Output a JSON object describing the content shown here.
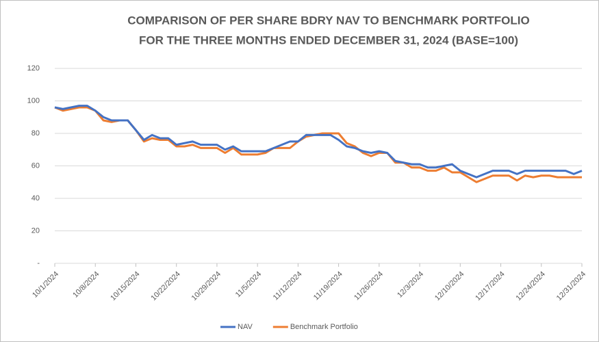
{
  "chart_data": {
    "type": "line",
    "title": [
      "COMPARISON OF PER SHARE BDRY NAV TO BENCHMARK PORTFOLIO",
      "FOR THE THREE MONTHS ENDED DECEMBER 31, 2024 (BASE=100)"
    ],
    "categories": [
      "10/1/2024",
      null,
      null,
      null,
      null,
      "10/8/2024",
      null,
      null,
      null,
      null,
      "10/15/2024",
      null,
      null,
      null,
      null,
      "10/22/2024",
      null,
      null,
      null,
      null,
      "10/29/2024",
      null,
      null,
      null,
      null,
      "11/5/2024",
      null,
      null,
      null,
      null,
      "11/12/2024",
      null,
      null,
      null,
      null,
      "11/19/2024",
      null,
      null,
      null,
      null,
      "11/26/2024",
      null,
      null,
      null,
      null,
      "12/3/2024",
      null,
      null,
      null,
      null,
      "12/10/2024",
      null,
      null,
      null,
      null,
      "12/17/2024",
      null,
      null,
      null,
      null,
      "12/24/2024",
      null,
      null,
      null,
      null,
      "12/31/2024"
    ],
    "series": [
      {
        "name": "NAV",
        "color": "#4472c4",
        "values": [
          96,
          95,
          96,
          97,
          97,
          94,
          90,
          88,
          88,
          88,
          82,
          76,
          79,
          77,
          77,
          73,
          74,
          75,
          73,
          73,
          73,
          70,
          72,
          69,
          69,
          69,
          69,
          71,
          73,
          75,
          75,
          79,
          79,
          79,
          79,
          76,
          72,
          71,
          69,
          68,
          69,
          68,
          63,
          62,
          61,
          61,
          59,
          59,
          60,
          61,
          57,
          55,
          53,
          55,
          57,
          57,
          57,
          55,
          57,
          57,
          57,
          57,
          57,
          57,
          55,
          57
        ]
      },
      {
        "name": "Benchmark Portfolio",
        "color": "#ed7d31",
        "values": [
          96,
          94,
          95,
          96,
          96,
          94,
          88,
          87,
          88,
          88,
          82,
          75,
          77,
          76,
          76,
          72,
          72,
          73,
          71,
          71,
          71,
          68,
          71,
          67,
          67,
          67,
          68,
          71,
          71,
          71,
          75,
          78,
          79,
          80,
          80,
          80,
          74,
          72,
          68,
          66,
          68,
          68,
          62,
          62,
          59,
          59,
          57,
          57,
          59,
          56,
          56,
          53,
          50,
          52,
          54,
          54,
          54,
          51,
          54,
          53,
          54,
          54,
          53,
          53,
          53,
          53
        ]
      }
    ],
    "ylim": [
      0,
      120
    ],
    "yticks": [
      {
        "value": 0,
        "label": "-"
      },
      20,
      40,
      60,
      80,
      100,
      120
    ],
    "grid": true,
    "legend": "bottom"
  }
}
